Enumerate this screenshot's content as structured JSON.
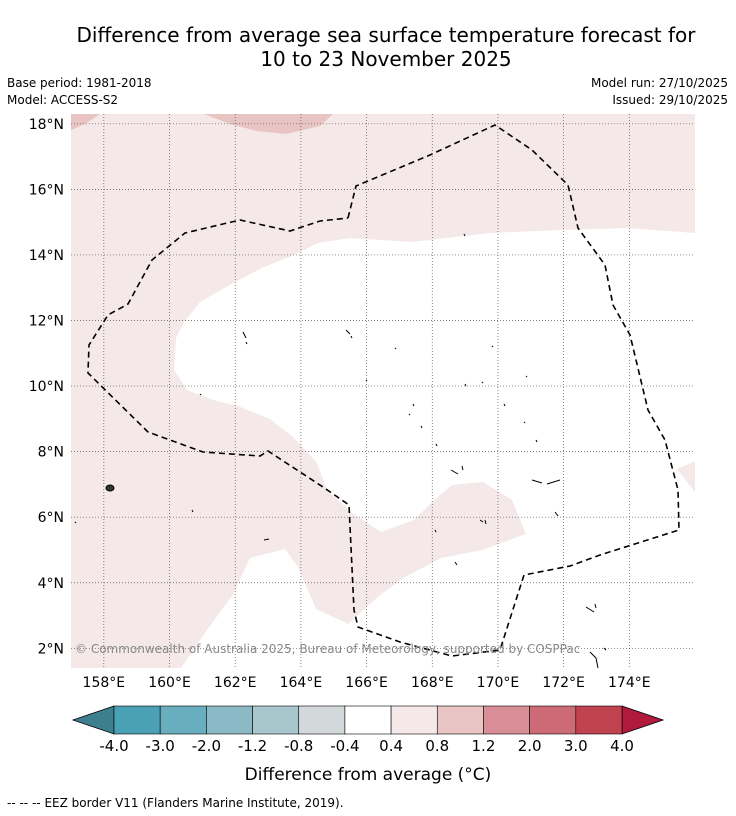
{
  "title": {
    "line1": "Difference from average sea surface temperature forecast for",
    "line2": "10 to 23 November 2025"
  },
  "meta": {
    "base_period": "Base period: 1981-2018",
    "model": "Model: ACCESS-S2",
    "model_run": "Model run: 27/10/2025",
    "issued": "Issued: 29/10/2025"
  },
  "map": {
    "lon_labels": [
      "158°E",
      "160°E",
      "162°E",
      "164°E",
      "166°E",
      "168°E",
      "170°E",
      "172°E",
      "174°E"
    ],
    "lat_labels": [
      "18°N",
      "16°N",
      "14°N",
      "12°N",
      "10°N",
      "8°N",
      "6°N",
      "4°N",
      "2°N"
    ],
    "lon_values": [
      158,
      160,
      162,
      164,
      166,
      168,
      170,
      172,
      174
    ],
    "lat_values": [
      18,
      16,
      14,
      12,
      10,
      8,
      6,
      4,
      2
    ],
    "lon_range": [
      157,
      176
    ],
    "lat_range": [
      1.4,
      18.3
    ],
    "watermark": "© Commonwealth of Australia 2025, Bureau of Meteorology, supported by COSPPac"
  },
  "colorbar": {
    "title": "Difference from average (°C)",
    "tick_labels": [
      "-4.0",
      "-3.0",
      "-2.0",
      "-1.2",
      "-0.8",
      "-0.4",
      "0.4",
      "0.8",
      "1.2",
      "2.0",
      "3.0",
      "4.0"
    ],
    "colors": {
      "below_min": "#3d7f8c",
      "bins": [
        "#4aa0b4",
        "#68aebf",
        "#8bbac6",
        "#a8c7cd",
        "#d3d8da",
        "#ffffff",
        "#f4e8e8",
        "#e8c4c3",
        "#d98e97",
        "#cc6a75",
        "#c0424f"
      ],
      "above_max": "#b01a3c"
    }
  },
  "legend": {
    "eez_line_sample": "-- -- --",
    "eez_text": "EEZ border V11 (Flanders Marine Institute, 2019)."
  }
}
